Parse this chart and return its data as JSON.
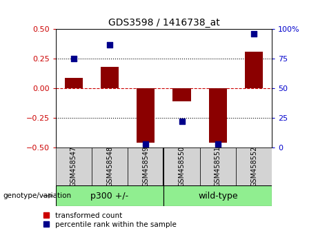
{
  "title": "GDS3598 / 1416738_at",
  "samples": [
    "GSM458547",
    "GSM458548",
    "GSM458549",
    "GSM458550",
    "GSM458551",
    "GSM458552"
  ],
  "transformed_counts": [
    0.09,
    0.18,
    -0.46,
    -0.11,
    -0.46,
    0.31
  ],
  "percentile_ranks": [
    75,
    87,
    3,
    22,
    3,
    96
  ],
  "groups": [
    {
      "label": "p300 +/-",
      "start": 0,
      "end": 2,
      "color": "#90EE90"
    },
    {
      "label": "wild-type",
      "start": 3,
      "end": 5,
      "color": "#90EE90"
    }
  ],
  "group_label_prefix": "genotype/variation",
  "bar_color": "#8B0000",
  "dot_color": "#00008B",
  "ylim_left": [
    -0.5,
    0.5
  ],
  "ylim_right": [
    0,
    100
  ],
  "yticks_left": [
    -0.5,
    -0.25,
    0.0,
    0.25,
    0.5
  ],
  "yticks_right": [
    0,
    25,
    50,
    75,
    100
  ],
  "hlines": [
    -0.25,
    0.0,
    0.25
  ],
  "hline_colors": {
    "0.0": "#cc0000",
    "-0.25": "black",
    "0.25": "black"
  },
  "hline_styles": {
    "0.0": "dashed",
    "-0.25": "dotted",
    "0.25": "dotted"
  },
  "legend_items": [
    "transformed count",
    "percentile rank within the sample"
  ],
  "legend_colors": [
    "#cc0000",
    "#00008B"
  ],
  "bg_plot": "#ffffff",
  "bg_labels": "#d3d3d3",
  "bar_width": 0.5,
  "dot_size": 40,
  "group_divider": 2.5
}
